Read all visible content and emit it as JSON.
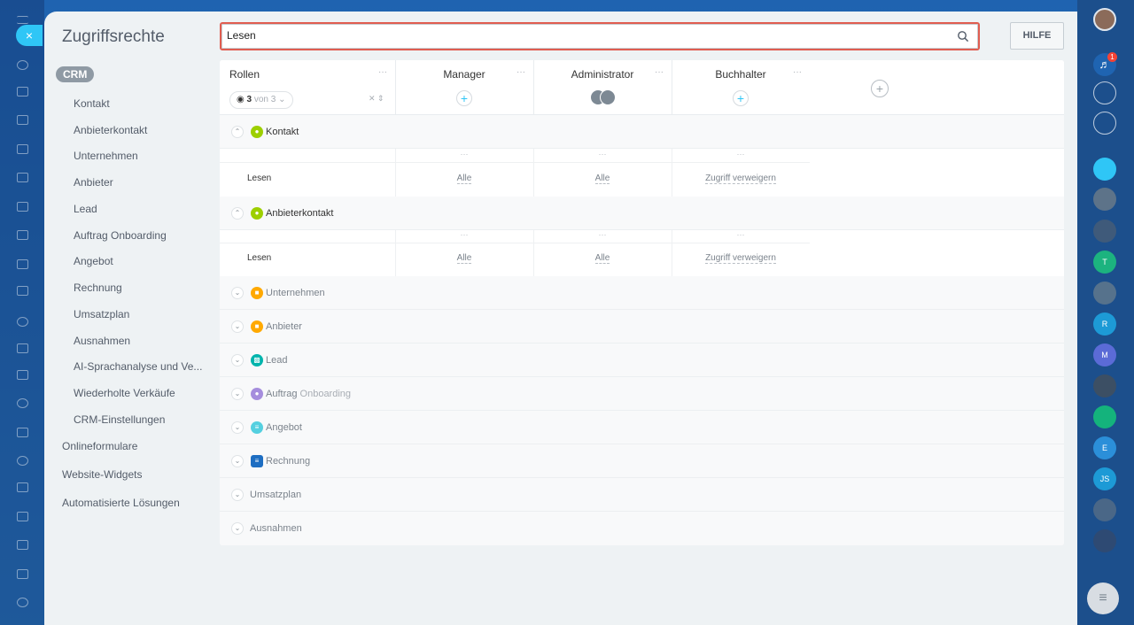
{
  "panel": {
    "title": "Zugriffsrechte",
    "close_icon": "×",
    "help_label": "HILFE",
    "search": {
      "value": "Lesen",
      "icon": "search-icon"
    }
  },
  "nav": {
    "crm_label": "CRM",
    "sub_items": [
      "Kontakt",
      "Anbieterkontakt",
      "Unternehmen",
      "Anbieter",
      "Lead",
      "Auftrag Onboarding",
      "Angebot",
      "Rechnung",
      "Umsatzplan",
      "Ausnahmen",
      "AI-Sprachanalyse und Ve...",
      "Wiederholte Verkäufe",
      "CRM-Einstellungen"
    ],
    "top_items": [
      "Onlineformulare",
      "Website-Widgets",
      "Automatisierte Lösungen"
    ]
  },
  "table": {
    "rollen_label": "Rollen",
    "counter": {
      "count": "3",
      "of": "von 3"
    },
    "roles": [
      "Manager",
      "Administrator",
      "Buchhalter"
    ],
    "row_dots": "···",
    "expanded_sections": [
      {
        "name": "Kontakt",
        "icon": "contact-icon",
        "color": "#9dcf00",
        "perm_label": "Lesen",
        "values": [
          "Alle",
          "Alle",
          "Zugriff verweigern"
        ]
      },
      {
        "name": "Anbieterkontakt",
        "icon": "contact-icon",
        "color": "#9dcf00",
        "perm_label": "Lesen",
        "values": [
          "Alle",
          "Alle",
          "Zugriff verweigern"
        ]
      }
    ],
    "collapsed_sections": [
      {
        "name": "Unternehmen",
        "icon": "company-icon",
        "color": "#ffa900"
      },
      {
        "name": "Anbieter",
        "icon": "company-icon",
        "color": "#ffa900"
      },
      {
        "name": "Lead",
        "icon": "lead-icon",
        "color": "#00b4ac"
      },
      {
        "name": "Auftrag",
        "name_suffix": "Onboarding",
        "icon": "deal-icon",
        "color": "#a58ddd"
      },
      {
        "name": "Angebot",
        "icon": "quote-icon",
        "color": "#55d0e0"
      },
      {
        "name": "Rechnung",
        "icon": "invoice-icon",
        "color": "#1e6ec2"
      },
      {
        "name": "Umsatzplan"
      },
      {
        "name": "Ausnahmen"
      }
    ]
  },
  "right_bar": {
    "notification_count": "1",
    "letters": [
      "T",
      "R",
      "M",
      "E",
      "JS"
    ]
  }
}
